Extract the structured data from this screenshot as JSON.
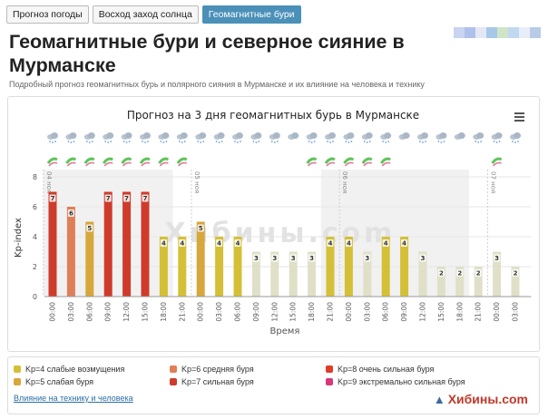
{
  "tabs": [
    "Прогноз погоды",
    "Восход заход солнца",
    "Геомагнитные бури"
  ],
  "title": "Геомагнитные бури и северное сияние в Мурманске",
  "subtitle": "Подробный прогноз геомагнитных бурь и полярного сияния в Мурманске и их влияние на человека и технику",
  "menu_icon": "hamburger-menu-icon",
  "colors": {
    "kp4": "#d4c037",
    "kp5": "#d6a73a",
    "kp6": "#df7f58",
    "kp7": "#cf3b2a",
    "kp8": "#e23b2a",
    "kp9": "#d6377a",
    "low": "#e0e0c8",
    "bg_shade": "#f1f1f1"
  },
  "chart_data": {
    "type": "bar",
    "title": "Прогноз на 3 дня геомагнитных бурь в Мурманске",
    "xlabel": "Время",
    "ylabel": "Kp-index",
    "ylim": [
      0,
      8
    ],
    "yticks": [
      0,
      2,
      4,
      6,
      8
    ],
    "categories": [
      "00:00",
      "03:00",
      "06:00",
      "09:00",
      "12:00",
      "15:00",
      "18:00",
      "21:00",
      "00:00",
      "03:00",
      "06:00",
      "09:00",
      "12:00",
      "15:00",
      "18:00",
      "21:00",
      "00:00",
      "03:00",
      "06:00",
      "09:00",
      "12:00",
      "15:00",
      "18:00",
      "21:00",
      "00:00",
      "03:00"
    ],
    "values": [
      7,
      6,
      5,
      7,
      7,
      7,
      4,
      4,
      5,
      4,
      4,
      3,
      3,
      3,
      3,
      4,
      4,
      3,
      4,
      4,
      3,
      2,
      2,
      2,
      3,
      2
    ],
    "date_markers": [
      {
        "label": "04 ноя",
        "index": 0
      },
      {
        "label": "05 ноя",
        "index": 8
      },
      {
        "label": "06 ноя",
        "index": 16
      },
      {
        "label": "07 ноя",
        "index": 24
      }
    ],
    "watermark": "Хибины.com",
    "weather_icons": [
      "snow",
      "snow",
      "snow",
      "snow",
      "snow",
      "snow",
      "snow",
      "snow",
      "snow",
      "snow",
      "snow",
      "snow",
      "snow",
      "cloud",
      "snow",
      "snow",
      "snow",
      "snow",
      "snow",
      "cloud",
      "snow",
      "snow",
      "cloud",
      "snow",
      "snow",
      "snow"
    ],
    "aurora_icons": [
      1,
      1,
      1,
      1,
      1,
      1,
      1,
      1,
      0,
      0,
      0,
      0,
      0,
      0,
      1,
      1,
      1,
      1,
      1,
      0,
      0,
      0,
      0,
      0,
      1,
      0
    ]
  },
  "legend": {
    "items": [
      {
        "label": "Kp=4 слабые возмущения",
        "color": "#d4c037"
      },
      {
        "label": "Kp=5 слабая буря",
        "color": "#d6a73a"
      },
      {
        "label": "Kp=6 средняя буря",
        "color": "#df7f58"
      },
      {
        "label": "Kp=7 сильная буря",
        "color": "#cf3b2a"
      },
      {
        "label": "Kp=8 очень сильная буря",
        "color": "#e23b2a"
      },
      {
        "label": "Kp=9 экстремально сильная буря",
        "color": "#d6377a"
      }
    ],
    "link": "Влияние на технику и человека"
  },
  "brand": "Хибины.com"
}
